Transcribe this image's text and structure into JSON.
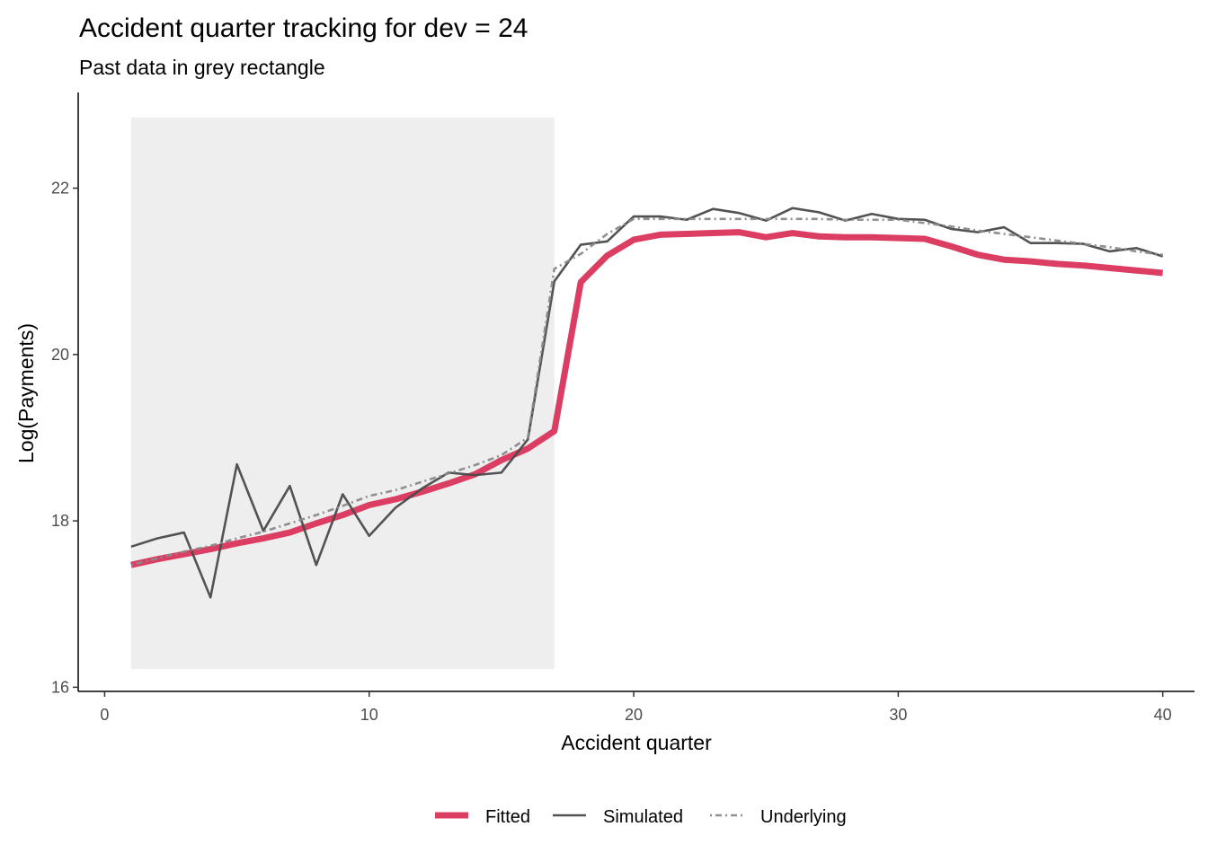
{
  "chart_data": {
    "type": "line",
    "title": "Accident quarter tracking for dev = 24",
    "subtitle": "Past data in grey rectangle",
    "xlabel": "Accident quarter",
    "ylabel": "Log(Payments)",
    "xlim": [
      -1,
      41.2
    ],
    "ylim": [
      15.95,
      23.15
    ],
    "xticks": [
      0,
      10,
      20,
      30,
      40
    ],
    "yticks": [
      16,
      18,
      20,
      22
    ],
    "grid": false,
    "legend_position": "bottom",
    "past_region": {
      "x": [
        1,
        17
      ],
      "y": [
        16.22,
        22.85
      ],
      "color": "#eeeeee"
    },
    "x": [
      1,
      2,
      3,
      4,
      5,
      6,
      7,
      8,
      9,
      10,
      11,
      12,
      13,
      14,
      15,
      16,
      17,
      18,
      19,
      20,
      21,
      22,
      23,
      24,
      25,
      26,
      27,
      28,
      29,
      30,
      31,
      32,
      33,
      34,
      35,
      36,
      37,
      38,
      39,
      40
    ],
    "series": [
      {
        "name": "Fitted",
        "color": "#d9345a",
        "style": "thick",
        "values": [
          17.47,
          17.54,
          17.6,
          17.66,
          17.73,
          17.79,
          17.86,
          17.97,
          18.07,
          18.19,
          18.26,
          18.35,
          18.45,
          18.56,
          18.73,
          18.87,
          19.08,
          20.87,
          21.19,
          21.38,
          21.44,
          21.45,
          21.46,
          21.47,
          21.41,
          21.46,
          21.42,
          21.41,
          21.41,
          21.4,
          21.39,
          21.3,
          21.2,
          21.14,
          21.12,
          21.09,
          21.07,
          21.04,
          21.01,
          20.98
        ]
      },
      {
        "name": "Simulated",
        "color": "#4a4a4a",
        "style": "solid",
        "values": [
          17.69,
          17.79,
          17.86,
          17.08,
          18.68,
          17.88,
          18.42,
          17.47,
          18.32,
          17.82,
          18.16,
          18.39,
          18.58,
          18.55,
          18.58,
          18.98,
          20.88,
          21.32,
          21.36,
          21.66,
          21.66,
          21.62,
          21.75,
          21.7,
          21.61,
          21.76,
          21.71,
          21.61,
          21.69,
          21.63,
          21.62,
          21.51,
          21.47,
          21.53,
          21.34,
          21.34,
          21.33,
          21.24,
          21.28,
          21.18
        ]
      },
      {
        "name": "Underlying",
        "color": "#8a8a8a",
        "style": "dotdash",
        "values": [
          17.47,
          17.55,
          17.63,
          17.7,
          17.79,
          17.87,
          17.97,
          18.07,
          18.18,
          18.3,
          18.37,
          18.47,
          18.57,
          18.67,
          18.79,
          19.0,
          21.03,
          21.21,
          21.45,
          21.63,
          21.63,
          21.63,
          21.63,
          21.63,
          21.63,
          21.63,
          21.63,
          21.62,
          21.62,
          21.62,
          21.58,
          21.54,
          21.49,
          21.45,
          21.41,
          21.37,
          21.33,
          21.29,
          21.24,
          21.2
        ]
      }
    ]
  }
}
